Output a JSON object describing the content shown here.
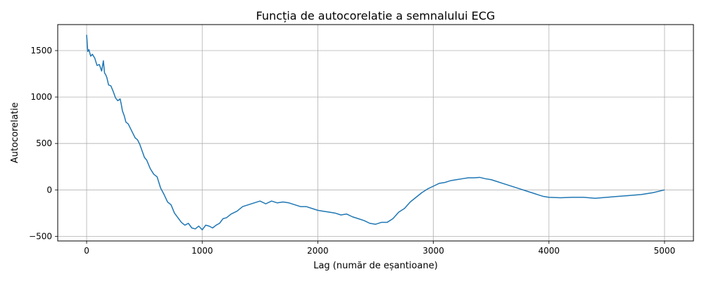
{
  "chart_data": {
    "type": "line",
    "title": "Funcția de autocorelatie a semnalului ECG",
    "xlabel": "Lag (număr de eșantioane)",
    "ylabel": "Autocorelatie",
    "xlim": [
      -250,
      5250
    ],
    "ylim": [
      -550,
      1780
    ],
    "xticks": [
      0,
      1000,
      2000,
      3000,
      4000,
      5000
    ],
    "yticks": [
      -500,
      0,
      500,
      1000,
      1500
    ],
    "grid": true,
    "line_color": "#1f77b4",
    "series": [
      {
        "x": [
          0,
          10,
          20,
          35,
          50,
          70,
          90,
          110,
          130,
          145,
          155,
          165,
          175,
          190,
          210,
          230,
          250,
          270,
          290,
          300,
          310,
          325,
          340,
          360,
          380,
          400,
          420,
          440,
          460,
          480,
          500,
          520,
          550,
          580,
          610,
          640,
          670,
          700,
          730,
          760,
          790,
          820,
          850,
          880,
          910,
          940,
          970,
          1000,
          1030,
          1060,
          1090,
          1120,
          1150,
          1180,
          1210,
          1250,
          1300,
          1350,
          1400,
          1450,
          1500,
          1550,
          1600,
          1650,
          1700,
          1750,
          1800,
          1850,
          1900,
          1950,
          2000,
          2050,
          2100,
          2150,
          2200,
          2250,
          2300,
          2350,
          2400,
          2450,
          2500,
          2550,
          2600,
          2650,
          2700,
          2750,
          2800,
          2850,
          2900,
          2950,
          3000,
          3050,
          3100,
          3150,
          3200,
          3250,
          3300,
          3350,
          3400,
          3450,
          3500,
          3550,
          3600,
          3650,
          3700,
          3750,
          3800,
          3850,
          3900,
          3950,
          4000,
          4100,
          4200,
          4300,
          4400,
          4500,
          4600,
          4700,
          4800,
          4900,
          5000
        ],
        "values": [
          1670,
          1490,
          1510,
          1440,
          1460,
          1420,
          1340,
          1350,
          1280,
          1390,
          1260,
          1240,
          1210,
          1130,
          1120,
          1060,
          990,
          960,
          980,
          920,
          850,
          800,
          730,
          710,
          660,
          610,
          560,
          540,
          490,
          420,
          350,
          320,
          230,
          170,
          140,
          20,
          -50,
          -130,
          -160,
          -250,
          -300,
          -350,
          -380,
          -360,
          -410,
          -420,
          -390,
          -430,
          -380,
          -390,
          -410,
          -380,
          -360,
          -310,
          -300,
          -260,
          -230,
          -180,
          -160,
          -140,
          -120,
          -150,
          -120,
          -140,
          -130,
          -140,
          -160,
          -180,
          -180,
          -200,
          -220,
          -230,
          -240,
          -250,
          -270,
          -260,
          -290,
          -310,
          -330,
          -360,
          -370,
          -350,
          -350,
          -310,
          -240,
          -200,
          -130,
          -80,
          -30,
          10,
          40,
          70,
          80,
          100,
          110,
          120,
          130,
          130,
          135,
          120,
          110,
          90,
          70,
          50,
          30,
          10,
          -10,
          -30,
          -50,
          -70,
          -80,
          -85,
          -80,
          -80,
          -90,
          -80,
          -70,
          -60,
          -50,
          -30,
          0
        ]
      }
    ]
  }
}
